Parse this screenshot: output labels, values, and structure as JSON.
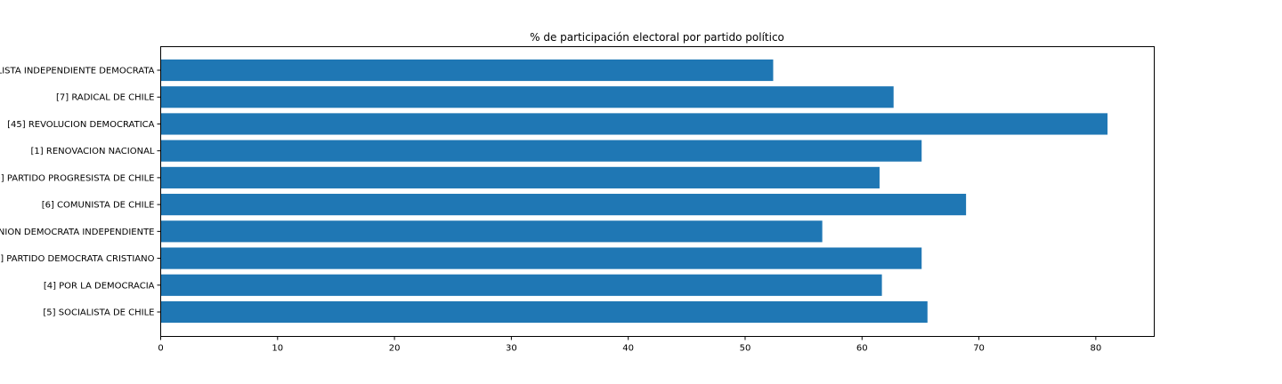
{
  "chart_data": {
    "type": "bar",
    "orientation": "horizontal",
    "title": "% de participación electoral por partido político",
    "xlabel": "",
    "ylabel": "",
    "xlim": [
      0,
      85
    ],
    "x_ticks": [
      0,
      10,
      20,
      30,
      40,
      50,
      60,
      70,
      80
    ],
    "grid": false,
    "legend": "none",
    "bar_color": "#1f77b4",
    "categories": [
      "LISTA INDEPENDIENTE DEMOCRATA",
      "[7] RADICAL DE CHILE",
      "[45] REVOLUCION DEMOCRATICA",
      "[1] RENOVACION NACIONAL",
      "0] PARTIDO PROGRESISTA DE CHILE",
      "[6] COMUNISTA DE CHILE",
      "NION DEMOCRATA INDEPENDIENTE",
      "] PARTIDO DEMOCRATA CRISTIANO",
      "[4] POR LA DEMOCRACIA",
      "[5] SOCIALISTA DE CHILE"
    ],
    "values": [
      52.4,
      62.7,
      81.0,
      65.1,
      61.5,
      68.9,
      56.6,
      65.1,
      61.7,
      65.6
    ]
  }
}
